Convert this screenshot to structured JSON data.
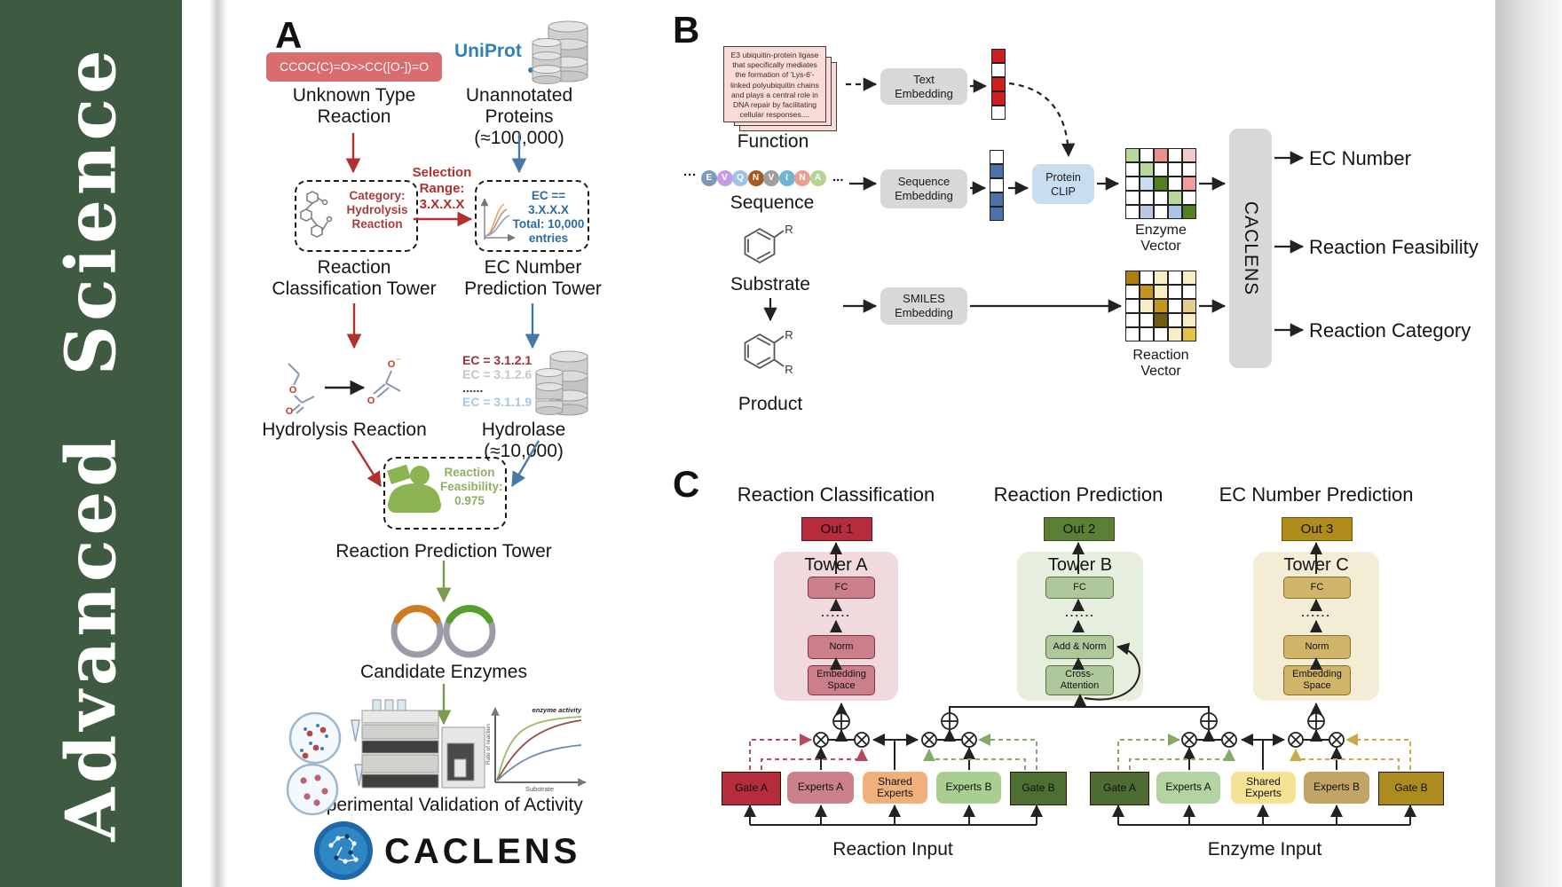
{
  "journal": {
    "name": "Advanced Science"
  },
  "colors": {
    "sidebar_green": "#3e5a40",
    "arrow_red": "#b03030",
    "arrow_blue": "#4878a8",
    "arrow_green": "#7a9a4e",
    "uniprot_blue": "#2f80b9",
    "smiles_red": "#d96c6c",
    "clip_blue": "#c9ddf1",
    "bar_gray": "#d8d8d8"
  },
  "palette": {
    "w": "#ffffff",
    "r": "#cc2020",
    "b": "#4a72a8",
    "lg": "#b7d79b",
    "sr": "#e98f8c",
    "lp": "#f3c9cb",
    "lb": "#ccdcf0",
    "dg": "#55801f",
    "sp": "#ef9f9f",
    "bg2": "#b9c9e2",
    "mb": "#a9c4e8",
    "dgo": "#ad7f10",
    "go": "#c3961d",
    "py": "#f7eec5",
    "tn": "#e3cd92",
    "do": "#6e5c10",
    "yw": "#e4c343"
  },
  "panelA": {
    "label": "A",
    "smiles": "CCOC(C)=O>>CC([O-])=O",
    "unknown": [
      "Unknown Type",
      "Reaction"
    ],
    "uniprot": "UniProt",
    "unannotated": [
      "Unannotated",
      "Proteins (≈100,000)"
    ],
    "selection": [
      "Selection",
      "Range:",
      "3.X.X.X"
    ],
    "category": [
      "Category:",
      "Hydrolysis",
      "Reaction"
    ],
    "ecbox": [
      "EC == 3.X.X.X",
      "Total: 10,000",
      "entries"
    ],
    "rct": [
      "Reaction",
      "Classification Tower"
    ],
    "ecpt": [
      "EC Number",
      "Prediction Tower"
    ],
    "ec_list": [
      {
        "text": "EC = 3.1.2.1",
        "color": "#9b3137"
      },
      {
        "text": "EC = 3.1.2.6",
        "color": "#c6c6c6"
      },
      {
        "text": "......",
        "color": "#333333"
      },
      {
        "text": "EC = 3.1.1.9",
        "color": "#a8c8e0"
      }
    ],
    "hydrolysis": "Hydrolysis Reaction",
    "hydrolase": "Hydrolase (≈10,000)",
    "enzyme_word": "Enzyme",
    "feas": [
      "Reaction",
      "Feasibility:",
      "0.975"
    ],
    "rpt": "Reaction Prediction Tower",
    "candidates": "Candidate Enzymes",
    "graph": {
      "title": "enzyme activity",
      "ylabel": "Rate of reaction",
      "xlabel": "Substrate"
    },
    "validation": "Experimental Validation of Activity",
    "logo": "CACLENS"
  },
  "panelB": {
    "label": "B",
    "card_text": "E3 ubiquitin-protein ligase that specifically mediates the formation of 'Lys-6'-linked polyubiquitin chains and plays a central role in DNA repair by facilitating cellular responses....",
    "function_label": "Function",
    "ell1": "···",
    "ell2": "...",
    "residues": [
      {
        "letter": "E",
        "color": "#7d9ab8"
      },
      {
        "letter": "V",
        "color": "#c79ce4"
      },
      {
        "letter": "Q",
        "color": "#9fc3e1"
      },
      {
        "letter": "N",
        "color": "#a55a20"
      },
      {
        "letter": "V",
        "color": "#9e9e9e"
      },
      {
        "letter": "I",
        "color": "#6db4d6"
      },
      {
        "letter": "N",
        "color": "#e8a191"
      },
      {
        "letter": "A",
        "color": "#b4d491"
      }
    ],
    "sequence_label": "Sequence",
    "substrate_label": "Substrate",
    "product_label": "Product",
    "r": "R",
    "text_emb": [
      "Text",
      "Embedding"
    ],
    "seq_emb": [
      "Sequence",
      "Embedding"
    ],
    "smiles_emb": [
      "SMILES",
      "Embedding"
    ],
    "clip": [
      "Protein",
      "CLIP"
    ],
    "text_vector": [
      "r",
      "w",
      "r",
      "r",
      "w"
    ],
    "seq_vector": [
      "w",
      "b",
      "w",
      "b",
      "b"
    ],
    "enzyme_matrix": [
      [
        "lg",
        "w",
        "sr",
        "w",
        "lp"
      ],
      [
        "w",
        "lg",
        "w",
        "w",
        "w"
      ],
      [
        "w",
        "lb",
        "dg",
        "w",
        "sp"
      ],
      [
        "w",
        "w",
        "w",
        "lg",
        "w"
      ],
      [
        "w",
        "bg2",
        "w",
        "mb",
        "dg"
      ]
    ],
    "reaction_matrix": [
      [
        "dgo",
        "w",
        "py",
        "w",
        "py"
      ],
      [
        "w",
        "go",
        "py",
        "w",
        "w"
      ],
      [
        "w",
        "py",
        "go",
        "w",
        "tn"
      ],
      [
        "w",
        "w",
        "do",
        "w",
        "py"
      ],
      [
        "w",
        "w",
        "w",
        "py",
        "yw"
      ]
    ],
    "enzyme_vec_label": "Enzyme Vector",
    "reaction_vec_label": "Reaction Vector",
    "bar": "CACLENS",
    "out_ec": "EC Number",
    "out_feas": "Reaction Feasibility",
    "out_cat": "Reaction Category"
  },
  "panelC": {
    "label": "C",
    "towers": [
      {
        "header": "Reaction Classification",
        "out": "Out 1",
        "name": "Tower A",
        "fc": "FC",
        "dots": "......",
        "mid": "Norm",
        "bottom": "Embedding Space"
      },
      {
        "header": "Reaction Prediction",
        "out": "Out 2",
        "name": "Tower B",
        "fc": "FC",
        "dots": "......",
        "mid": "Add & Norm",
        "bottom": "Cross- Attention"
      },
      {
        "header": "EC Number Prediction",
        "out": "Out 3",
        "name": "Tower C",
        "fc": "FC",
        "dots": "......",
        "mid": "Norm",
        "bottom": "Embedding Space"
      }
    ],
    "moe": {
      "reaction": {
        "gate_a": "Gate A",
        "experts_a": "Experts A",
        "shared": "Shared Experts",
        "experts_b": "Experts B",
        "gate_b": "Gate B",
        "input": "Reaction Input"
      },
      "enzyme": {
        "gate_a": "Gate A",
        "experts_a": "Experts A",
        "shared": "Shared Experts",
        "experts_b": "Experts B",
        "gate_b": "Gate B",
        "input": "Enzyme Input"
      }
    }
  }
}
